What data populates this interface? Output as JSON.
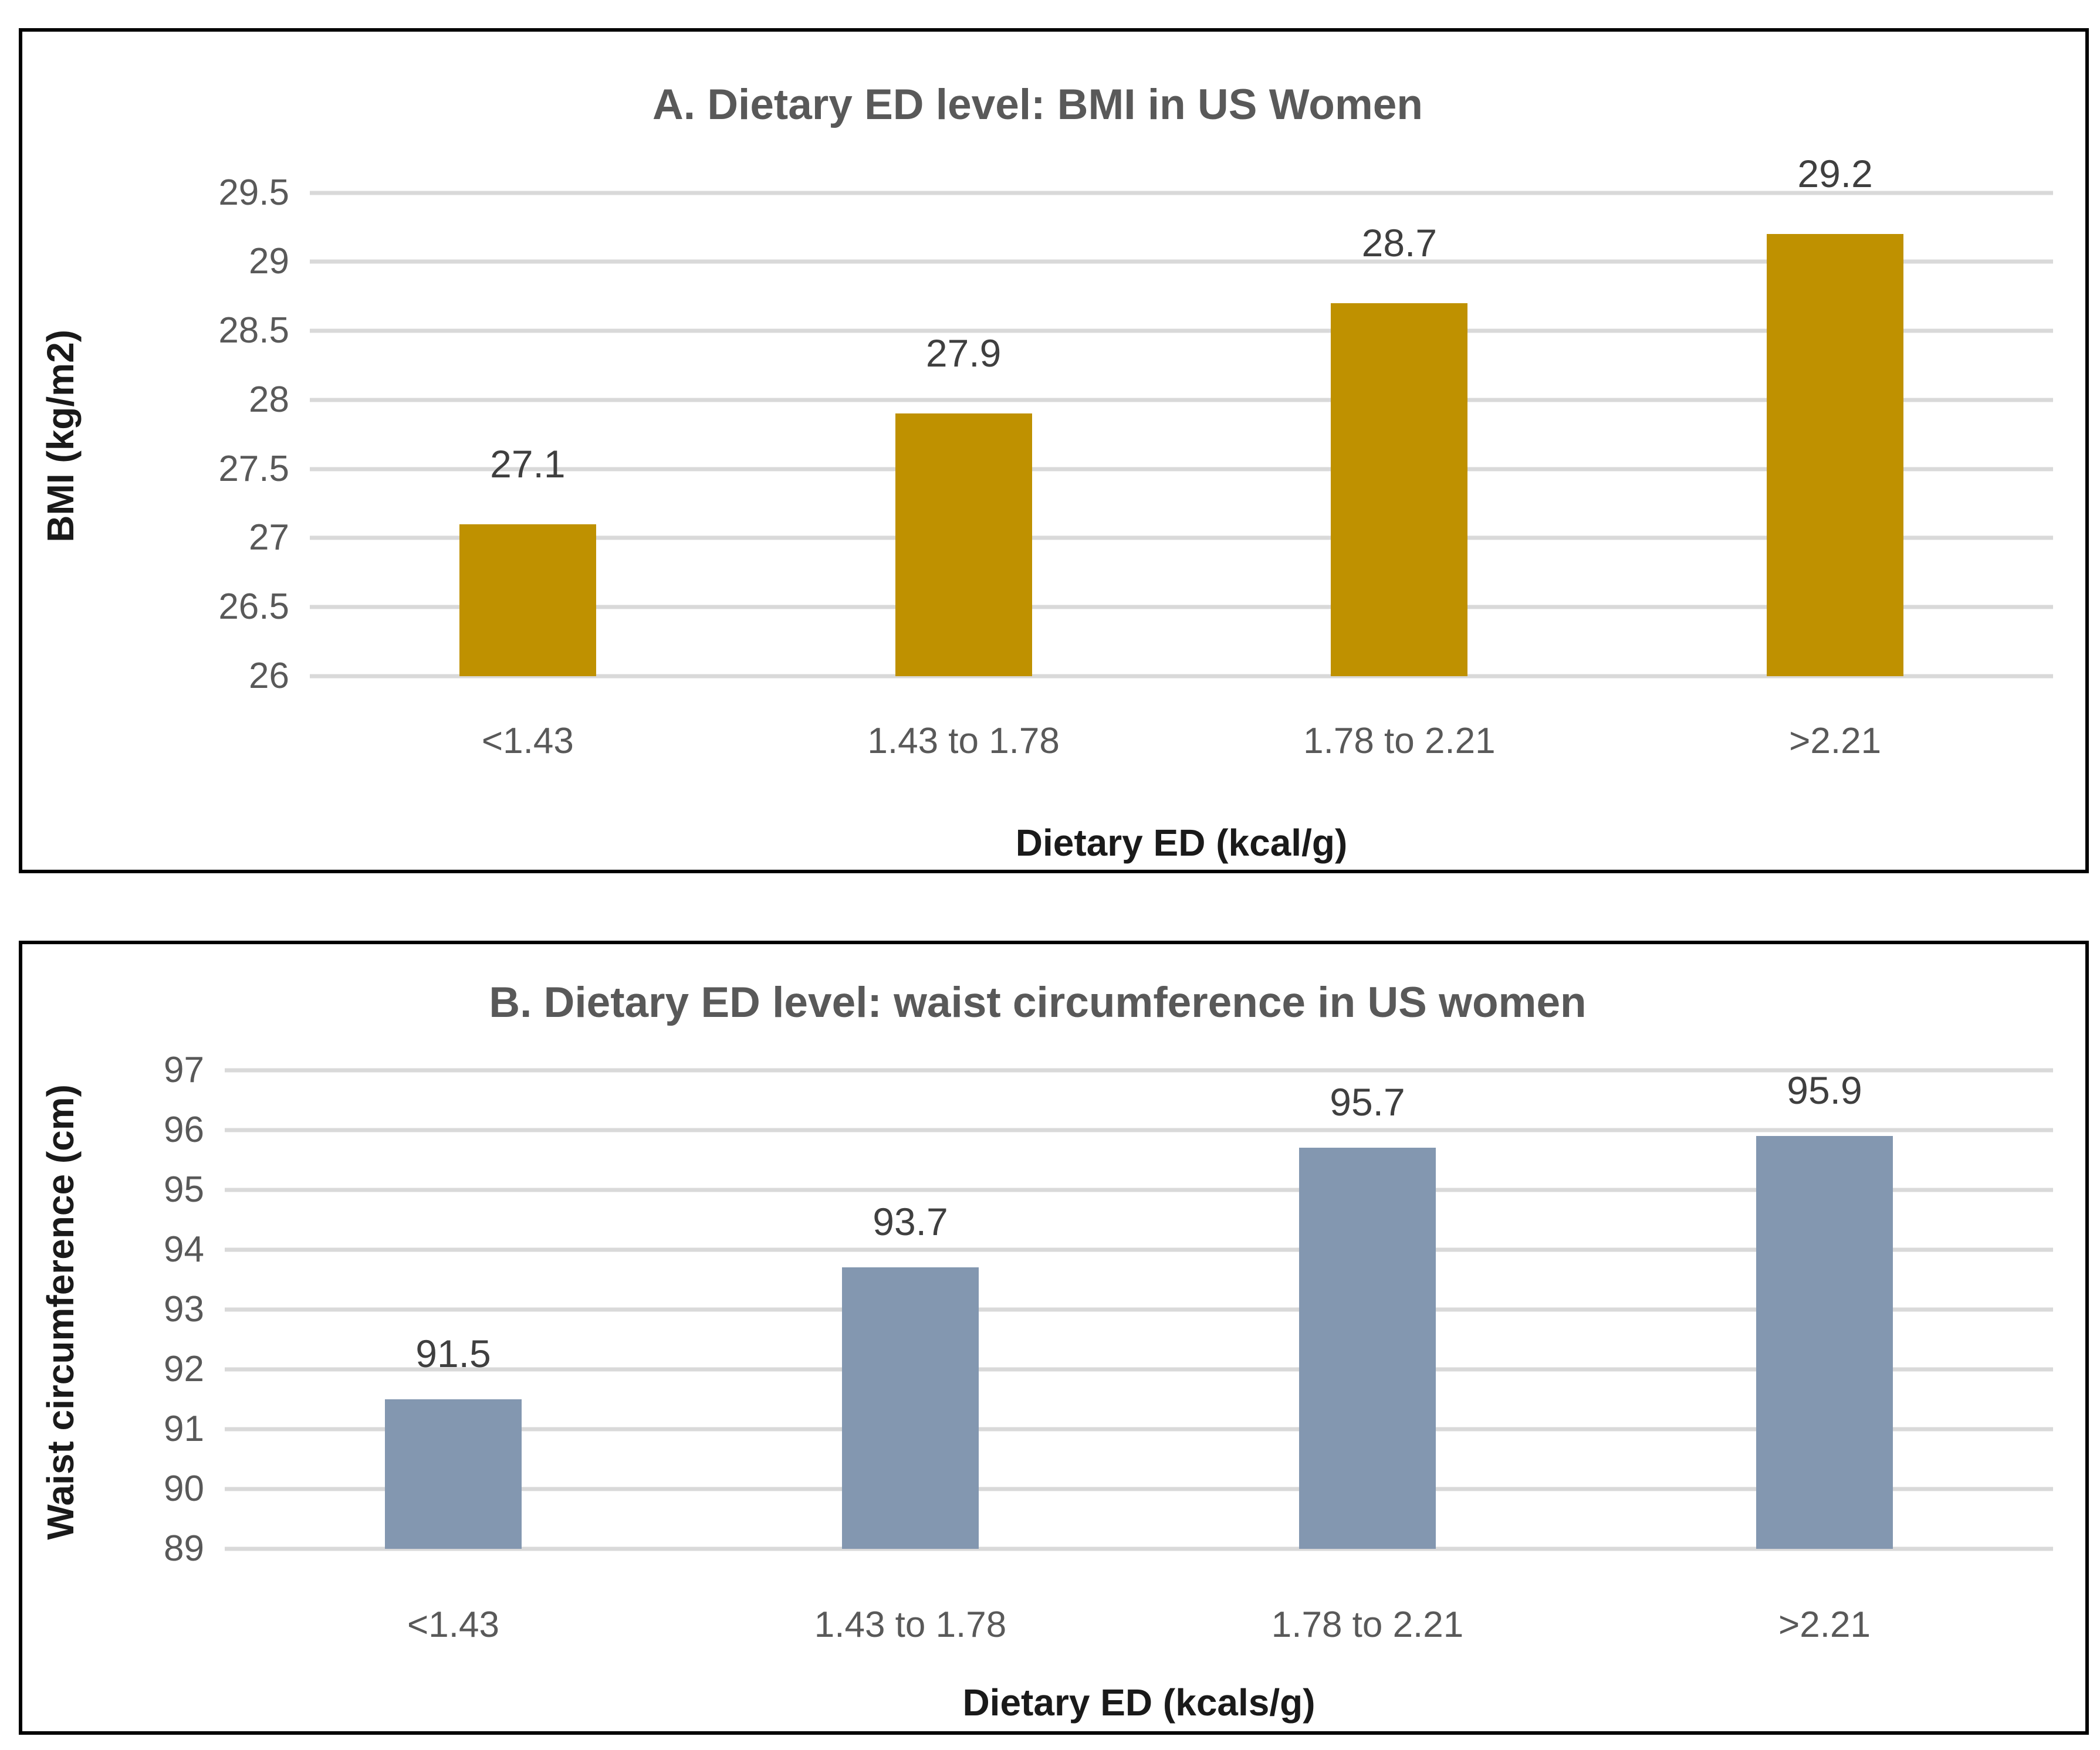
{
  "colors": {
    "panel_border": "#000000",
    "gridline": "#D9D9D9",
    "chart_title_text": "#595959",
    "axis_title_text": "#1A1A1A",
    "tick_label_text": "#595959",
    "bar_value_label_text": "#3F3F3F",
    "gold_bar": "#BF9100",
    "blue_gray_bar": "#8397B0"
  },
  "chart_data": [
    {
      "type": "bar",
      "panel": "A",
      "title": "A. Dietary ED level: BMI in US Women",
      "categories": [
        "<1.43",
        "1.43 to 1.78",
        "1.78 to 2.21",
        ">2.21"
      ],
      "values": [
        27.1,
        27.9,
        28.7,
        29.2
      ],
      "bar_labels": [
        "27.1",
        "27.9",
        "28.7",
        "29.2"
      ],
      "xlabel": "Dietary ED (kcal/g)",
      "ylabel": "BMI (kg/m2)",
      "ylim": [
        26,
        29.5
      ],
      "ytick_step": 0.5,
      "ytick_labels": [
        "26",
        "26.5",
        "27",
        "27.5",
        "28",
        "28.5",
        "29",
        "29.5"
      ],
      "bar_color": "#BF9100",
      "grid": true,
      "legend": false
    },
    {
      "type": "bar",
      "panel": "B",
      "title": "B. Dietary ED level: waist circumference in US women",
      "categories": [
        "<1.43",
        "1.43 to 1.78",
        "1.78 to 2.21",
        ">2.21"
      ],
      "values": [
        91.5,
        93.7,
        95.7,
        95.9
      ],
      "bar_labels": [
        "91.5",
        "93.7",
        "95.7",
        "95.9"
      ],
      "xlabel": "Dietary ED (kcals/g)",
      "ylabel": "Waist circumference (cm)",
      "ylim": [
        89,
        97
      ],
      "ytick_step": 1,
      "ytick_labels": [
        "89",
        "90",
        "91",
        "92",
        "93",
        "94",
        "95",
        "96",
        "97"
      ],
      "bar_color": "#8397B0",
      "grid": true,
      "legend": false
    }
  ]
}
